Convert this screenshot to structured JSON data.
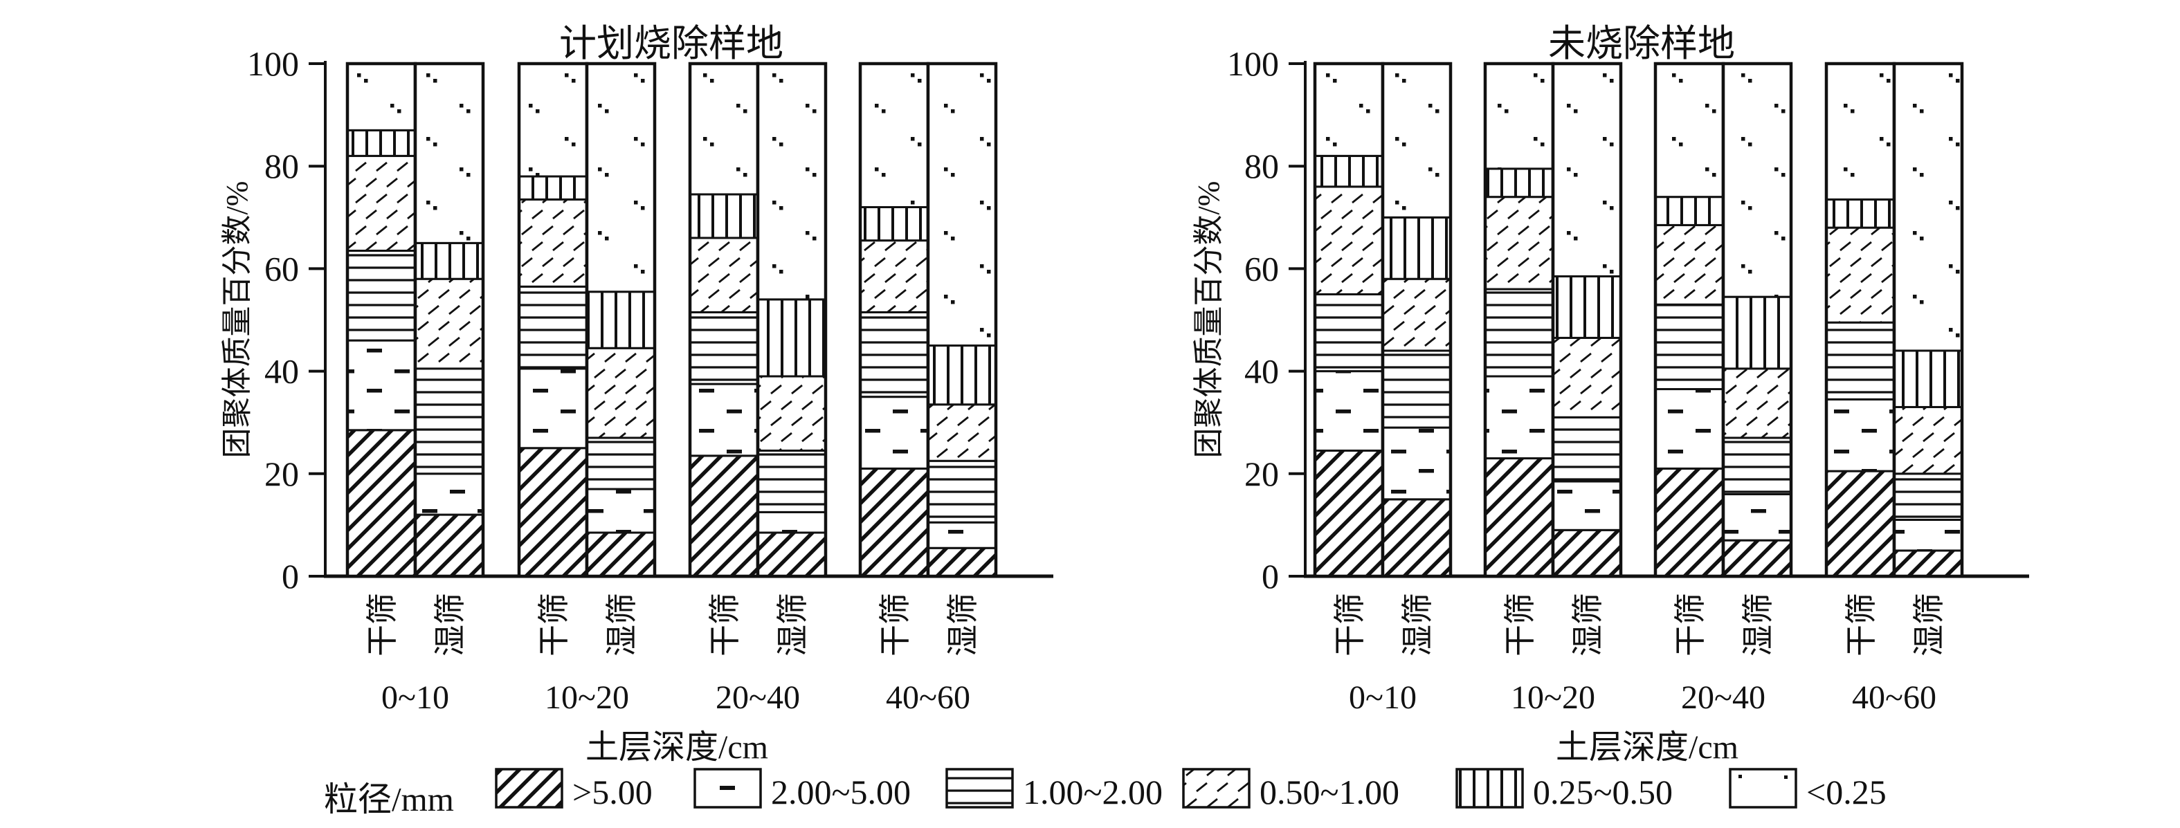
{
  "figure": {
    "background_color": "#ffffff",
    "ink_color": "#111111"
  },
  "legend": {
    "title": "粒径/mm",
    "position": "bottom",
    "items": [
      {
        "label": ">5.00",
        "pattern": "hatch",
        "pattern_desc": "bold diagonal hatch"
      },
      {
        "label": "2.00~5.00",
        "pattern": "dash",
        "pattern_desc": "sparse short horizontal dashes"
      },
      {
        "label": "1.00~2.00",
        "pattern": "hlines",
        "pattern_desc": "horizontal lines"
      },
      {
        "label": "0.50~1.00",
        "pattern": "diagdash",
        "pattern_desc": "light diagonal dashes"
      },
      {
        "label": "0.25~0.50",
        "pattern": "vlines",
        "pattern_desc": "vertical lines"
      },
      {
        "label": "<0.25",
        "pattern": "dots",
        "pattern_desc": "sparse dots"
      }
    ]
  },
  "chart_data": [
    {
      "type": "bar",
      "stacked": true,
      "grid": false,
      "title": "计划烧除样地",
      "ylabel": "团聚体质量百分数/%",
      "xlabel": "土层深度/cm",
      "ylim": [
        0,
        100
      ],
      "yticks": [
        0,
        20,
        40,
        60,
        80,
        100
      ],
      "series_order_bottom_to_top": [
        ">5.00",
        "2.00~5.00",
        "1.00~2.00",
        "0.50~1.00",
        "0.25~0.50",
        "<0.25"
      ],
      "groups": [
        {
          "depth": "0~10",
          "bars": [
            {
              "label": "干筛",
              "values": [
                28.5,
                17.5,
                17.5,
                18.5,
                5,
                13
              ]
            },
            {
              "label": "湿筛",
              "values": [
                12,
                8,
                20.5,
                17.5,
                7,
                35
              ]
            }
          ]
        },
        {
          "depth": "10~20",
          "bars": [
            {
              "label": "干筛",
              "values": [
                25,
                15.5,
                16,
                17,
                4.5,
                22
              ]
            },
            {
              "label": "湿筛",
              "values": [
                8.5,
                8.5,
                10,
                17.5,
                11,
                44.5
              ]
            }
          ]
        },
        {
          "depth": "20~40",
          "bars": [
            {
              "label": "干筛",
              "values": [
                23.5,
                14,
                14,
                14.5,
                8.5,
                25.5
              ]
            },
            {
              "label": "湿筛",
              "values": [
                8.5,
                4,
                12,
                14.5,
                15,
                46
              ]
            }
          ]
        },
        {
          "depth": "40~60",
          "bars": [
            {
              "label": "干筛",
              "values": [
                21,
                14,
                16.5,
                14,
                6.5,
                28
              ]
            },
            {
              "label": "湿筛",
              "values": [
                5.5,
                5,
                12,
                11,
                11.5,
                55
              ]
            }
          ]
        }
      ]
    },
    {
      "type": "bar",
      "stacked": true,
      "grid": false,
      "title": "未烧除样地",
      "ylabel": "团聚体质量百分数/%",
      "xlabel": "土层深度/cm",
      "ylim": [
        0,
        100
      ],
      "yticks": [
        0,
        20,
        40,
        60,
        80,
        100
      ],
      "series_order_bottom_to_top": [
        ">5.00",
        "2.00~5.00",
        "1.00~2.00",
        "0.50~1.00",
        "0.25~0.50",
        "<0.25"
      ],
      "groups": [
        {
          "depth": "0~10",
          "bars": [
            {
              "label": "干筛",
              "values": [
                24.5,
                15.5,
                15,
                21,
                6,
                18
              ]
            },
            {
              "label": "湿筛",
              "values": [
                15,
                14,
                15,
                14,
                12,
                30
              ]
            }
          ]
        },
        {
          "depth": "10~20",
          "bars": [
            {
              "label": "干筛",
              "values": [
                23,
                16,
                17,
                18,
                5.5,
                20.5
              ]
            },
            {
              "label": "湿筛",
              "values": [
                9,
                9.5,
                12.5,
                15.5,
                12,
                41.5
              ]
            }
          ]
        },
        {
          "depth": "20~40",
          "bars": [
            {
              "label": "干筛",
              "values": [
                21,
                15.5,
                16.5,
                15.5,
                5.5,
                26
              ]
            },
            {
              "label": "湿筛",
              "values": [
                7,
                9,
                11,
                13.5,
                14,
                45.5
              ]
            }
          ]
        },
        {
          "depth": "40~60",
          "bars": [
            {
              "label": "干筛",
              "values": [
                20.5,
                14,
                15,
                18.5,
                5.5,
                26.5
              ]
            },
            {
              "label": "湿筛",
              "values": [
                5,
                6,
                9,
                13,
                11,
                56
              ]
            }
          ]
        }
      ]
    }
  ]
}
